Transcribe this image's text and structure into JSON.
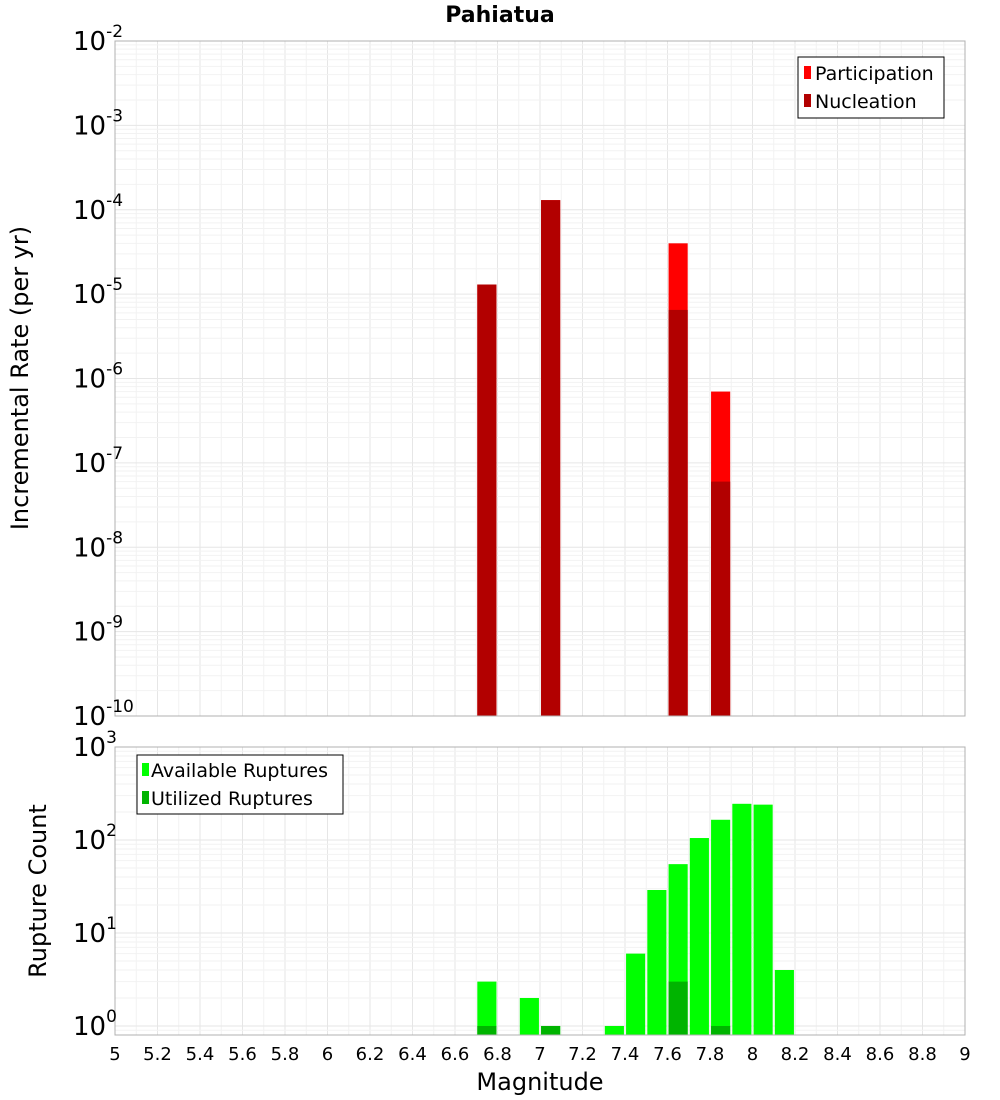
{
  "chart_data": [
    {
      "type": "bar",
      "title": "Pahiatua",
      "ylabel": "Incremental Rate (per yr)",
      "xlabel": "",
      "xlim": [
        5,
        9
      ],
      "ylim": [
        1e-10,
        0.01
      ],
      "yscale": "log",
      "grid": true,
      "legend_position": "top-right",
      "bar_width": 0.09,
      "series": [
        {
          "name": "Participation",
          "color": "#ff0000",
          "x": [
            6.75,
            7.05,
            7.65,
            7.85
          ],
          "values": [
            1.3e-05,
            0.00013,
            4e-05,
            7e-07
          ]
        },
        {
          "name": "Nucleation",
          "color": "#b20000",
          "x": [
            6.75,
            7.05,
            7.65,
            7.85
          ],
          "values": [
            1.3e-05,
            0.00013,
            6.5e-06,
            6e-08
          ]
        }
      ],
      "y_ticks": [
        {
          "base": "10",
          "exp": "-2"
        },
        {
          "base": "10",
          "exp": "-3"
        },
        {
          "base": "10",
          "exp": "-4"
        },
        {
          "base": "10",
          "exp": "-5"
        },
        {
          "base": "10",
          "exp": "-6"
        },
        {
          "base": "10",
          "exp": "-7"
        },
        {
          "base": "10",
          "exp": "-8"
        },
        {
          "base": "10",
          "exp": "-9"
        },
        {
          "base": "10",
          "exp": "-10"
        }
      ]
    },
    {
      "type": "bar",
      "title": "",
      "ylabel": "Rupture Count",
      "xlabel": "Magnitude",
      "xlim": [
        5,
        9
      ],
      "ylim": [
        0.8,
        1000
      ],
      "yscale": "log",
      "grid": true,
      "legend_position": "top-left",
      "bar_width": 0.09,
      "series": [
        {
          "name": "Available Ruptures",
          "color": "#00ff00",
          "x": [
            6.75,
            6.95,
            7.05,
            7.35,
            7.45,
            7.55,
            7.65,
            7.75,
            7.85,
            7.95,
            8.05,
            8.15
          ],
          "values": [
            3,
            2,
            1,
            1,
            6,
            29,
            55,
            105,
            165,
            245,
            240,
            4
          ]
        },
        {
          "name": "Utilized Ruptures",
          "color": "#00b400",
          "x": [
            6.75,
            7.05,
            7.65,
            7.85
          ],
          "values": [
            1,
            1,
            3,
            1
          ]
        }
      ],
      "y_ticks": [
        {
          "base": "10",
          "exp": "3"
        },
        {
          "base": "10",
          "exp": "2"
        },
        {
          "base": "10",
          "exp": "1"
        },
        {
          "base": "10",
          "exp": "0"
        }
      ],
      "x_ticks": [
        "5",
        "5.2",
        "5.4",
        "5.6",
        "5.8",
        "6",
        "6.2",
        "6.4",
        "6.6",
        "6.8",
        "7",
        "7.2",
        "7.4",
        "7.6",
        "7.8",
        "8",
        "8.2",
        "8.4",
        "8.6",
        "8.8",
        "9"
      ]
    }
  ]
}
